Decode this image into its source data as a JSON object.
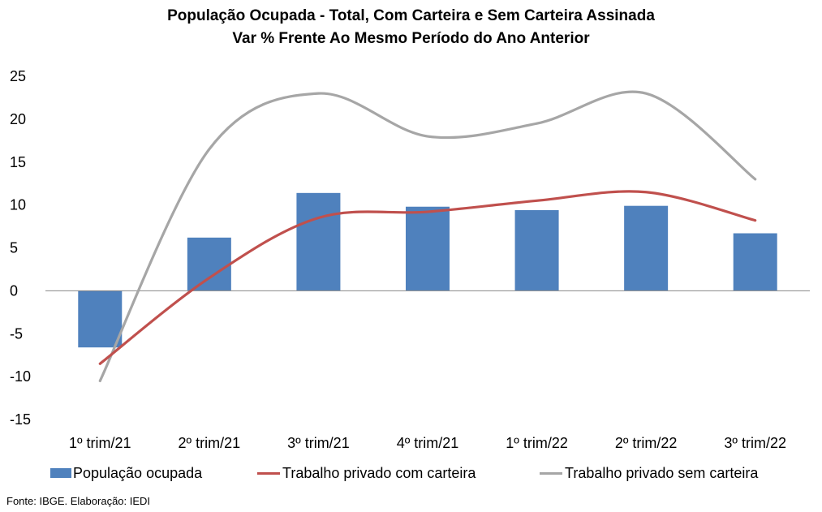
{
  "chart_data": {
    "type": "bar",
    "title": "População Ocupada - Total, Com Carteira e Sem Carteira Assinada",
    "subtitle": "Var % Frente Ao Mesmo Período do Ano Anterior",
    "categories": [
      "1º trim/21",
      "2º trim/21",
      "3º trim/21",
      "4º trim/21",
      "1º trim/22",
      "2º trim/22",
      "3º trim/22"
    ],
    "ylim": [
      -15,
      25
    ],
    "yticks": [
      "25",
      "20",
      "15",
      "10",
      "5",
      "0",
      "-5",
      "-10",
      "-15"
    ],
    "grid": false,
    "legend_position": "bottom",
    "series": [
      {
        "name": "População ocupada",
        "type": "bar",
        "color": "#4F81BD",
        "values": [
          -6.6,
          6.2,
          11.4,
          9.8,
          9.4,
          9.9,
          6.7
        ]
      },
      {
        "name": "Trabalho privado com carteira",
        "type": "line",
        "smooth": true,
        "color": "#C0504D",
        "values": [
          -8.5,
          1.5,
          8.5,
          9.2,
          10.5,
          11.5,
          8.2
        ]
      },
      {
        "name": "Trabalho privado sem carteira",
        "type": "line",
        "smooth": true,
        "color": "#A6A6A6",
        "values": [
          -10.5,
          16.5,
          23.0,
          18.0,
          19.5,
          23.0,
          13.0
        ]
      }
    ]
  },
  "source": "Fonte: IBGE. Elaboração: IEDI"
}
